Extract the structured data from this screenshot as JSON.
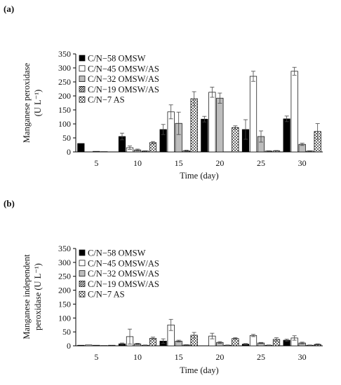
{
  "chart_data": [
    {
      "type": "bar",
      "panel_label": "(a)",
      "categories": [
        "5",
        "10",
        "15",
        "20",
        "25",
        "30"
      ],
      "xlabel": "Time (day)",
      "ylabel_lines": [
        "Manganese peroxidase",
        "(U L⁻¹)"
      ],
      "ylim": [
        0,
        350
      ],
      "yticks": [
        0,
        50,
        100,
        150,
        200,
        250,
        300,
        350
      ],
      "grid": false,
      "legend_position": "top-left",
      "series": [
        {
          "name": "C/N−58 OMSW",
          "values": [
            30,
            55,
            80,
            117,
            80,
            118
          ],
          "errors": [
            0,
            12,
            18,
            10,
            35,
            10
          ]
        },
        {
          "name": "C/N−45 OMSW/AS",
          "values": [
            0,
            15,
            143,
            213,
            270,
            288
          ],
          "errors": [
            0,
            6,
            25,
            18,
            18,
            14
          ]
        },
        {
          "name": "C/N−32 OMSW/AS",
          "values": [
            2,
            7,
            102,
            192,
            55,
            27
          ],
          "errors": [
            0,
            3,
            40,
            18,
            20,
            4
          ]
        },
        {
          "name": "C/N−19 OMSW/AS",
          "values": [
            1,
            3,
            4,
            0,
            3,
            3
          ],
          "errors": [
            0,
            1,
            2,
            0,
            1,
            1
          ]
        },
        {
          "name": "C/N−7 AS",
          "values": [
            0,
            33,
            190,
            87,
            4,
            73
          ],
          "errors": [
            0,
            4,
            25,
            6,
            1,
            28
          ]
        }
      ]
    },
    {
      "type": "bar",
      "panel_label": "(b)",
      "categories": [
        "5",
        "10",
        "15",
        "20",
        "25",
        "30"
      ],
      "xlabel": "Time (day)",
      "ylabel_lines": [
        "Manganese independent",
        "peroxidase (U L⁻¹)"
      ],
      "ylim": [
        0,
        350
      ],
      "yticks": [
        0,
        50,
        100,
        150,
        200,
        250,
        300,
        350
      ],
      "grid": false,
      "legend_position": "top-left",
      "series": [
        {
          "name": "C/N−58 OMSW",
          "values": [
            2,
            7,
            17,
            0,
            6,
            20
          ],
          "errors": [
            0,
            3,
            8,
            0,
            2,
            4
          ]
        },
        {
          "name": "C/N−45 OMSW/AS",
          "values": [
            3,
            33,
            75,
            35,
            37,
            28
          ],
          "errors": [
            0,
            27,
            20,
            10,
            4,
            8
          ]
        },
        {
          "name": "C/N−32 OMSW/AS",
          "values": [
            2,
            7,
            17,
            12,
            10,
            10
          ],
          "errors": [
            0,
            2,
            3,
            3,
            2,
            3
          ]
        },
        {
          "name": "C/N−19 OMSW/AS",
          "values": [
            1,
            2,
            3,
            2,
            2,
            2
          ],
          "errors": [
            0,
            1,
            1,
            1,
            1,
            1
          ]
        },
        {
          "name": "C/N−7 AS",
          "values": [
            2,
            27,
            38,
            26,
            23,
            5
          ],
          "errors": [
            0,
            4,
            10,
            3,
            6,
            2
          ]
        }
      ]
    }
  ]
}
